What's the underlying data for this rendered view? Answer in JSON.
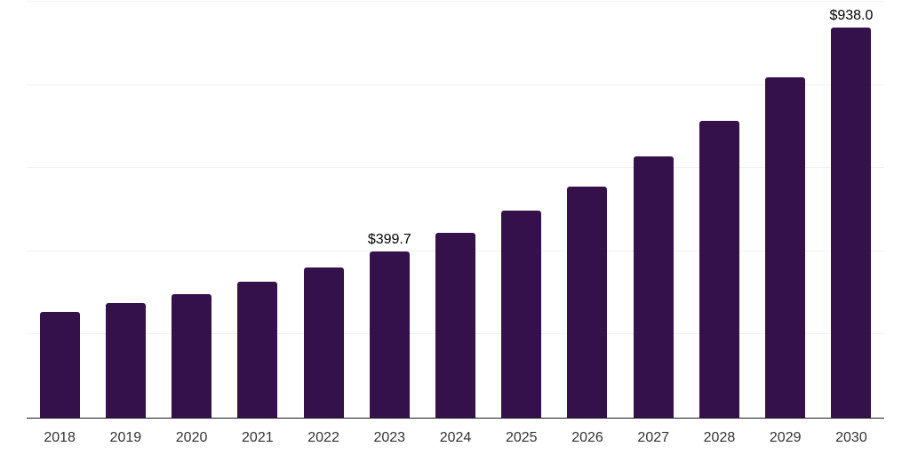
{
  "page": {
    "background_color": "#ffffff"
  },
  "chart_data": {
    "type": "bar",
    "title": "",
    "xlabel": "",
    "ylabel": "",
    "categories": [
      "2018",
      "2019",
      "2020",
      "2021",
      "2022",
      "2023",
      "2024",
      "2025",
      "2026",
      "2027",
      "2028",
      "2029",
      "2030"
    ],
    "values": [
      254,
      275,
      297,
      327,
      362,
      399.7,
      444,
      497,
      555,
      628,
      714,
      819,
      938
    ],
    "data_labels": {
      "2023": "$399.7",
      "2030": "$938.0"
    },
    "ylim": [
      0,
      1000
    ],
    "gridline_values": [
      200,
      400,
      600,
      800,
      1000
    ],
    "grid": true,
    "legend": "none",
    "bar_color": "#34114b",
    "gridline_color": "#f1f1f1",
    "axis_line_color": "#1a1a1a",
    "data_label_color": "#000000",
    "tick_label_color": "#333333"
  }
}
